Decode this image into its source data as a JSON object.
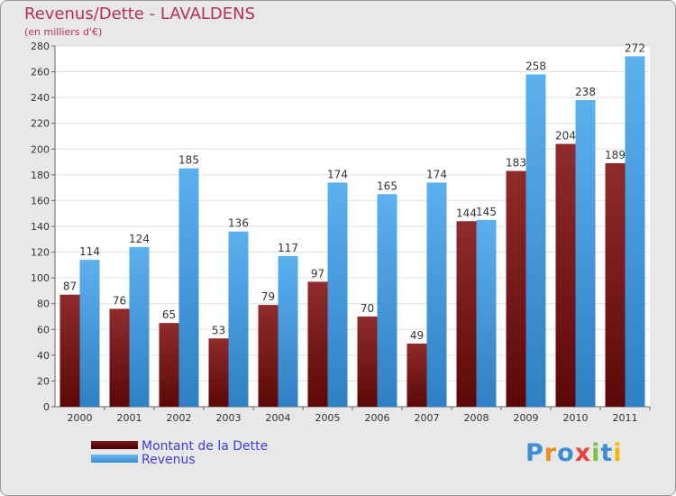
{
  "header": {
    "title": "Revenus/Dette - LAVALDENS",
    "subtitle": "(en milliers d'€)"
  },
  "chart_data": {
    "type": "bar",
    "title": "Revenus/Dette - LAVALDENS",
    "ylabel": "(en milliers d'€)",
    "xlabel": "",
    "categories": [
      "2000",
      "2001",
      "2002",
      "2003",
      "2004",
      "2005",
      "2006",
      "2007",
      "2008",
      "2009",
      "2010",
      "2011"
    ],
    "series": [
      {
        "name": "Montant de la Dette",
        "color": "#7a1a1a",
        "values": [
          87,
          76,
          65,
          53,
          79,
          97,
          70,
          49,
          144,
          183,
          204,
          189
        ]
      },
      {
        "name": "Revenus",
        "color": "#4aa3e6",
        "values": [
          114,
          124,
          185,
          136,
          117,
          174,
          165,
          174,
          145,
          258,
          238,
          272
        ]
      }
    ],
    "ylim": [
      0,
      280
    ],
    "yticks": [
      0,
      20,
      40,
      60,
      80,
      100,
      120,
      140,
      160,
      180,
      200,
      220,
      240,
      260,
      280
    ],
    "grid": true,
    "legend": "bottom-left"
  },
  "legend": {
    "items": [
      {
        "label": "Montant de la Dette",
        "color": "#7a1a1a"
      },
      {
        "label": "Revenus",
        "color": "#4aa3e6"
      }
    ]
  },
  "logo": {
    "letters": [
      "P",
      "r",
      "o",
      "x",
      "i",
      "t",
      "i"
    ],
    "colors": [
      "#3d8fd4",
      "#f08a24",
      "#3d8fd4",
      "#e8423c",
      "#7bc043",
      "#3d8fd4",
      "#f5b800"
    ]
  }
}
